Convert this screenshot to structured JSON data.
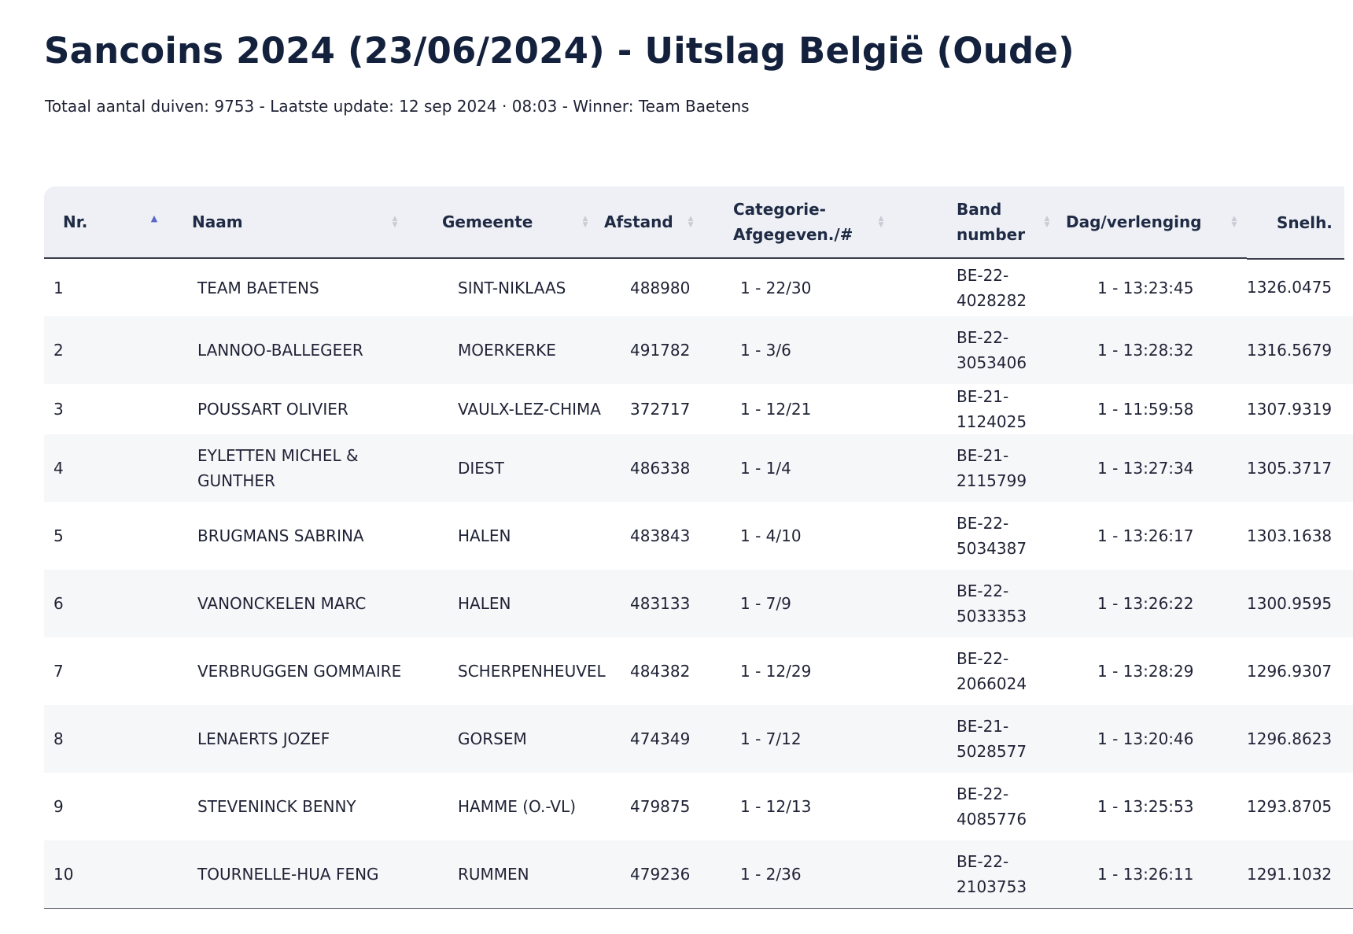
{
  "page": {
    "title": "Sancoins 2024 (23/06/2024) - Uitslag België (Oude)",
    "subtitle": "Totaal aantal duiven: 9753 - Laatste update: 12 sep 2024 · 08:03 - Winner: Team Baetens"
  },
  "table": {
    "columns": [
      {
        "key": "nr",
        "label": "Nr."
      },
      {
        "key": "naam",
        "label": "Naam"
      },
      {
        "key": "gemeente",
        "label": "Gemeente"
      },
      {
        "key": "afstand",
        "label": "Afstand"
      },
      {
        "key": "categorie",
        "label": "Categorie-Afgegeven./#"
      },
      {
        "key": "band",
        "label": "Band number"
      },
      {
        "key": "dag",
        "label": "Dag/verlenging"
      },
      {
        "key": "snelh",
        "label": "Snelh."
      }
    ],
    "sort_column": "nr",
    "sort_direction": "ascending",
    "rows": [
      {
        "nr": "1",
        "naam": "TEAM BAETENS",
        "gemeente": "SINT-NIKLAAS",
        "afstand": "488980",
        "categorie": "1 - 22/30",
        "band": "BE-22-4028282",
        "dag": "1 - 13:23:45",
        "snelh": "1326.0475"
      },
      {
        "nr": "2",
        "naam": "LANNOO-BALLEGEER",
        "gemeente": "MOERKERKE",
        "afstand": "491782",
        "categorie": "1 - 3/6",
        "band": "BE-22-3053406",
        "dag": "1 - 13:28:32",
        "snelh": "1316.5679"
      },
      {
        "nr": "3",
        "naam": "POUSSART OLIVIER",
        "gemeente": "VAULX-LEZ-CHIMA",
        "afstand": "372717",
        "categorie": "1 - 12/21",
        "band": "BE-21-1124025",
        "dag": "1 - 11:59:58",
        "snelh": "1307.9319"
      },
      {
        "nr": "4",
        "naam": "EYLETTEN MICHEL & GUNTHER",
        "gemeente": "DIEST",
        "afstand": "486338",
        "categorie": "1 - 1/4",
        "band": "BE-21-2115799",
        "dag": "1 - 13:27:34",
        "snelh": "1305.3717"
      },
      {
        "nr": "5",
        "naam": "BRUGMANS SABRINA",
        "gemeente": "HALEN",
        "afstand": "483843",
        "categorie": "1 - 4/10",
        "band": "BE-22-5034387",
        "dag": "1 - 13:26:17",
        "snelh": "1303.1638"
      },
      {
        "nr": "6",
        "naam": "VANONCKELEN MARC",
        "gemeente": "HALEN",
        "afstand": "483133",
        "categorie": "1 - 7/9",
        "band": "BE-22-5033353",
        "dag": "1 - 13:26:22",
        "snelh": "1300.9595"
      },
      {
        "nr": "7",
        "naam": "VERBRUGGEN GOMMAIRE",
        "gemeente": "SCHERPENHEUVEL",
        "afstand": "484382",
        "categorie": "1 - 12/29",
        "band": "BE-22-2066024",
        "dag": "1 - 13:28:29",
        "snelh": "1296.9307"
      },
      {
        "nr": "8",
        "naam": "LENAERTS JOZEF",
        "gemeente": "GORSEM",
        "afstand": "474349",
        "categorie": "1 - 7/12",
        "band": "BE-21-5028577",
        "dag": "1 - 13:20:46",
        "snelh": "1296.8623"
      },
      {
        "nr": "9",
        "naam": "STEVENINCK BENNY",
        "gemeente": "HAMME (O.-VL)",
        "afstand": "479875",
        "categorie": "1 - 12/13",
        "band": "BE-22-4085776",
        "dag": "1 - 13:25:53",
        "snelh": "1293.8705"
      },
      {
        "nr": "10",
        "naam": "TOURNELLE-HUA FENG",
        "gemeente": "RUMMEN",
        "afstand": "479236",
        "categorie": "1 - 2/36",
        "band": "BE-22-2103753",
        "dag": "1 - 13:26:11",
        "snelh": "1291.1032"
      }
    ]
  }
}
